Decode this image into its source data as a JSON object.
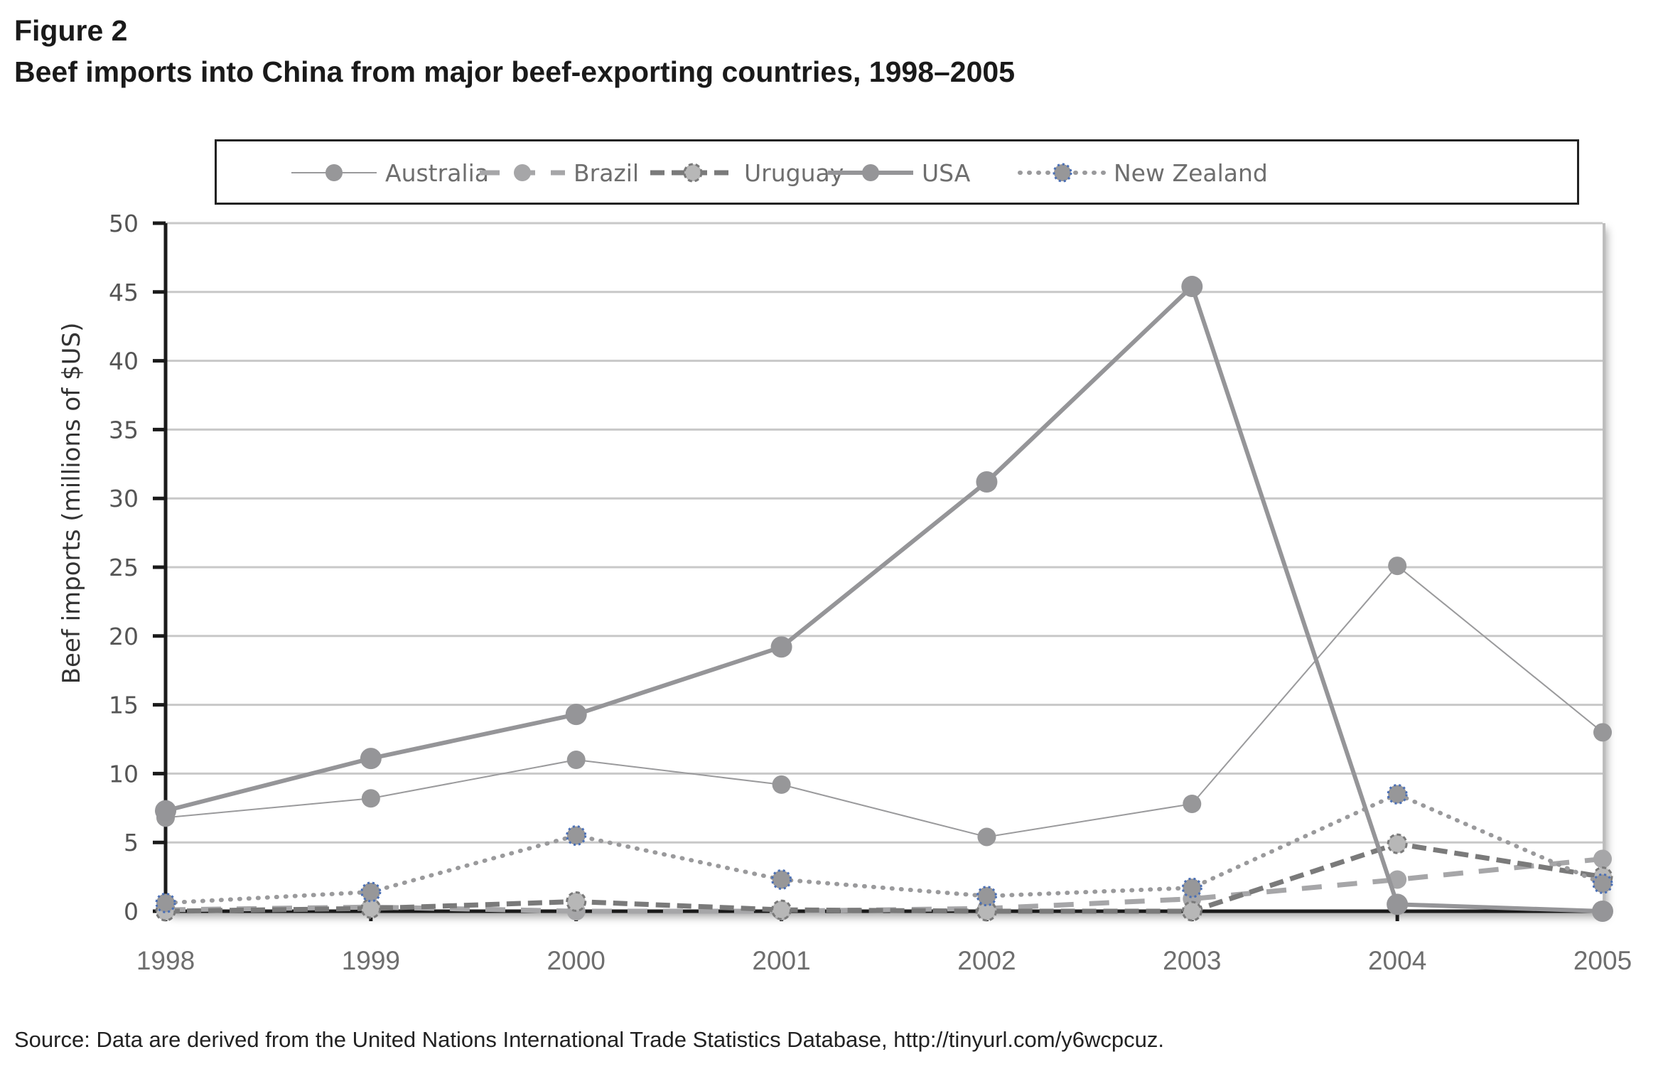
{
  "figure": {
    "label": "Figure 2",
    "title": "Beef imports into China from major beef-exporting countries, 1998–2005",
    "source": "Source: Data are derived from the United Nations International Trade Statistics Database, http://tinyurl.com/y6wcpcuz."
  },
  "chart_data": {
    "type": "line",
    "title": "Beef imports into China from major beef-exporting countries, 1998–2005",
    "xlabel": "",
    "ylabel": "Beef imports (millions of $US)",
    "x": [
      "1998",
      "1999",
      "2000",
      "2001",
      "2002",
      "2003",
      "2004",
      "2005"
    ],
    "ylim": [
      0,
      50
    ],
    "yticks": [
      "0",
      "5",
      "10",
      "15",
      "20",
      "25",
      "30",
      "35",
      "40",
      "45",
      "50"
    ],
    "grid": true,
    "legend_position": "top",
    "series": [
      {
        "name": "Australia",
        "style": "thin-solid",
        "color": "#9a9a9c",
        "values": [
          6.8,
          8.2,
          11.0,
          9.2,
          5.4,
          7.8,
          25.1,
          13.0
        ]
      },
      {
        "name": "Brazil",
        "style": "long-dash",
        "color": "#a6a6a8",
        "values": [
          0.1,
          0.3,
          0.0,
          0.0,
          0.2,
          0.9,
          2.3,
          3.8
        ]
      },
      {
        "name": "Uruguay",
        "style": "short-dash",
        "color": "#7a7a7a",
        "values": [
          0.0,
          0.2,
          0.7,
          0.1,
          0.0,
          0.0,
          4.9,
          2.5
        ]
      },
      {
        "name": "USA",
        "style": "thick-solid",
        "color": "#959598",
        "values": [
          7.3,
          11.1,
          14.3,
          19.2,
          31.2,
          45.4,
          0.5,
          0.0
        ]
      },
      {
        "name": "New Zealand",
        "style": "dotted",
        "color": "#9a9a9c",
        "marker_edge": "#4a6fb5",
        "values": [
          0.6,
          1.4,
          5.5,
          2.3,
          1.1,
          1.7,
          8.5,
          2.0
        ]
      }
    ]
  }
}
